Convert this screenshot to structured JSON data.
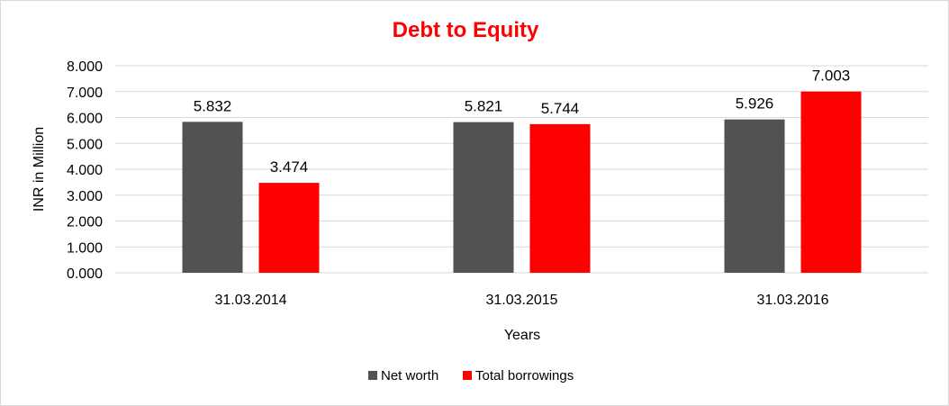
{
  "chart_data": {
    "type": "bar",
    "title": "Debt to Equity",
    "title_color": "#ff0000",
    "xlabel": "Years",
    "ylabel": "INR in Million",
    "categories": [
      "31.03.2014",
      "31.03.2015",
      "31.03.2016"
    ],
    "series": [
      {
        "name": "Net worth",
        "color": "#525252",
        "values": [
          5.832,
          5.821,
          5.926
        ]
      },
      {
        "name": "Total borrowings",
        "color": "#ff0000",
        "values": [
          3.474,
          5.744,
          7.003
        ]
      }
    ],
    "ylim": [
      0,
      8
    ],
    "yticks": [
      0,
      1,
      2,
      3,
      4,
      5,
      6,
      7,
      8
    ],
    "ytick_labels": [
      "0.000",
      "1.000",
      "2.000",
      "3.000",
      "4.000",
      "5.000",
      "6.000",
      "7.000",
      "8.000"
    ],
    "data_labels": [
      [
        "5.832",
        "5.821",
        "5.926"
      ],
      [
        "3.474",
        "5.744",
        "7.003"
      ]
    ],
    "grid": true,
    "legend_position": "bottom"
  }
}
